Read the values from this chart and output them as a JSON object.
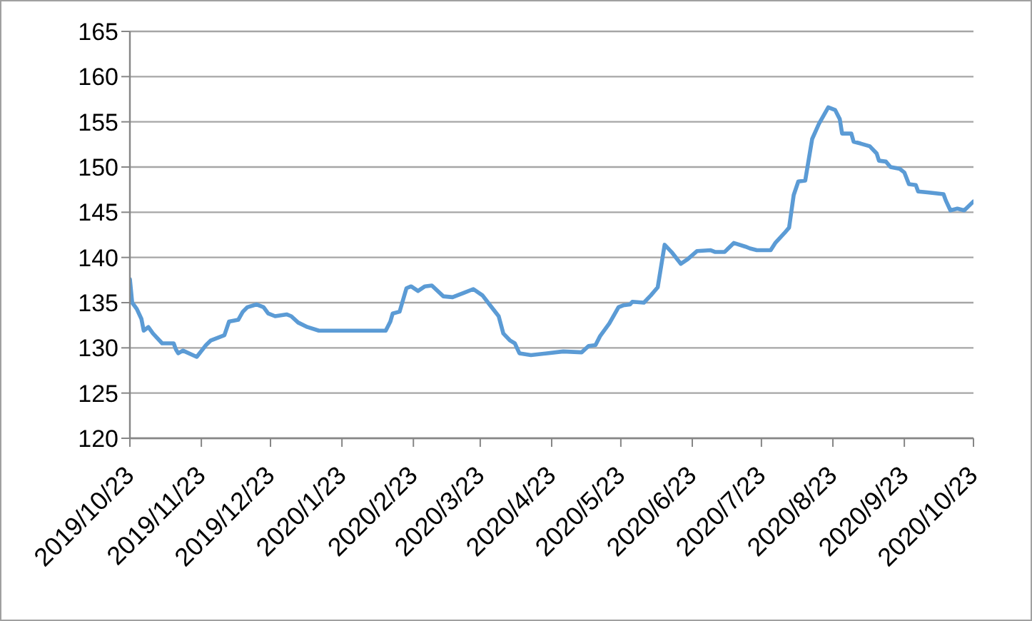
{
  "chart_data": {
    "type": "line",
    "color": "#5b9bd5",
    "x": [
      "2019-10-23",
      "2019-10-24",
      "2019-10-26",
      "2019-10-28",
      "2019-10-29",
      "2019-10-31",
      "2019-11-02",
      "2019-11-06",
      "2019-11-11",
      "2019-11-12",
      "2019-11-13",
      "2019-11-15",
      "2019-11-21",
      "2019-11-25",
      "2019-11-27",
      "2019-12-01",
      "2019-12-03",
      "2019-12-05",
      "2019-12-09",
      "2019-12-11",
      "2019-12-13",
      "2019-12-17",
      "2019-12-20",
      "2019-12-22",
      "2019-12-25",
      "2019-12-30",
      "2020-01-01",
      "2020-01-04",
      "2020-01-08",
      "2020-01-13",
      "2020-02-11",
      "2020-02-13",
      "2020-02-14",
      "2020-02-17",
      "2020-02-20",
      "2020-02-22",
      "2020-02-25",
      "2020-02-28",
      "2020-03-02",
      "2020-03-07",
      "2020-03-11",
      "2020-03-16",
      "2020-03-20",
      "2020-03-24",
      "2020-03-27",
      "2020-03-31",
      "2020-04-02",
      "2020-04-05",
      "2020-04-07",
      "2020-04-09",
      "2020-04-14",
      "2020-04-21",
      "2020-04-28",
      "2020-05-06",
      "2020-05-09",
      "2020-05-12",
      "2020-05-14",
      "2020-05-18",
      "2020-05-22",
      "2020-05-24",
      "2020-05-27",
      "2020-05-28",
      "2020-06-02",
      "2020-06-05",
      "2020-06-08",
      "2020-06-11",
      "2020-06-14",
      "2020-06-18",
      "2020-06-21",
      "2020-06-25",
      "2020-07-01",
      "2020-07-03",
      "2020-07-07",
      "2020-07-11",
      "2020-07-16",
      "2020-07-18",
      "2020-07-21",
      "2020-07-27",
      "2020-07-29",
      "2020-08-02",
      "2020-08-04",
      "2020-08-06",
      "2020-08-08",
      "2020-08-11",
      "2020-08-14",
      "2020-08-17",
      "2020-08-21",
      "2020-08-24",
      "2020-08-26",
      "2020-08-27",
      "2020-08-31",
      "2020-09-01",
      "2020-09-04",
      "2020-09-08",
      "2020-09-11",
      "2020-09-12",
      "2020-09-15",
      "2020-09-17",
      "2020-09-21",
      "2020-09-23",
      "2020-09-25",
      "2020-09-28",
      "2020-09-29",
      "2020-10-03",
      "2020-10-10",
      "2020-10-11",
      "2020-10-13",
      "2020-10-16",
      "2020-10-19",
      "2020-10-23"
    ],
    "values": [
      137.6,
      135.0,
      134.3,
      133.2,
      131.9,
      132.3,
      131.6,
      130.5,
      130.5,
      129.8,
      129.4,
      129.7,
      129.0,
      130.3,
      130.8,
      131.2,
      131.4,
      132.9,
      133.1,
      134.0,
      134.5,
      134.8,
      134.5,
      133.8,
      133.5,
      133.7,
      133.5,
      132.8,
      132.3,
      131.9,
      131.9,
      132.9,
      133.8,
      134.0,
      136.6,
      136.8,
      136.3,
      136.8,
      136.9,
      135.7,
      135.6,
      136.1,
      136.5,
      135.8,
      134.8,
      133.5,
      131.6,
      130.8,
      130.5,
      129.4,
      129.2,
      129.4,
      129.6,
      129.5,
      130.2,
      130.3,
      131.3,
      132.7,
      134.5,
      134.7,
      134.8,
      135.1,
      135.0,
      135.8,
      136.7,
      141.4,
      140.6,
      139.3,
      139.8,
      140.7,
      140.8,
      140.6,
      140.6,
      141.6,
      141.2,
      141.0,
      140.8,
      140.8,
      141.6,
      142.7,
      143.3,
      146.9,
      148.4,
      148.5,
      153.1,
      154.8,
      156.6,
      156.3,
      155.3,
      153.7,
      153.7,
      152.8,
      152.6,
      152.3,
      151.5,
      150.7,
      150.6,
      150.0,
      149.8,
      149.4,
      148.1,
      148.0,
      147.3,
      147.2,
      147.0,
      146.3,
      145.2,
      145.4,
      145.2,
      146.2
    ],
    "xlim": [
      "2019-10-23",
      "2020-10-23"
    ],
    "xticks": [
      {
        "value": "2019-10-23",
        "label": "2019/10/23"
      },
      {
        "value": "2019-11-23",
        "label": "2019/11/23"
      },
      {
        "value": "2019-12-23",
        "label": "2019/12/23"
      },
      {
        "value": "2020-01-23",
        "label": "2020/1/23"
      },
      {
        "value": "2020-02-23",
        "label": "2020/2/23"
      },
      {
        "value": "2020-03-23",
        "label": "2020/3/23"
      },
      {
        "value": "2020-04-23",
        "label": "2020/4/23"
      },
      {
        "value": "2020-05-23",
        "label": "2020/5/23"
      },
      {
        "value": "2020-06-23",
        "label": "2020/6/23"
      },
      {
        "value": "2020-07-23",
        "label": "2020/7/23"
      },
      {
        "value": "2020-08-23",
        "label": "2020/8/23"
      },
      {
        "value": "2020-09-23",
        "label": "2020/9/23"
      },
      {
        "value": "2020-10-23",
        "label": "2020/10/23"
      }
    ],
    "ylim": [
      120,
      165
    ],
    "yticks": [
      120,
      125,
      130,
      135,
      140,
      145,
      150,
      155,
      160,
      165
    ],
    "grid": "y"
  }
}
